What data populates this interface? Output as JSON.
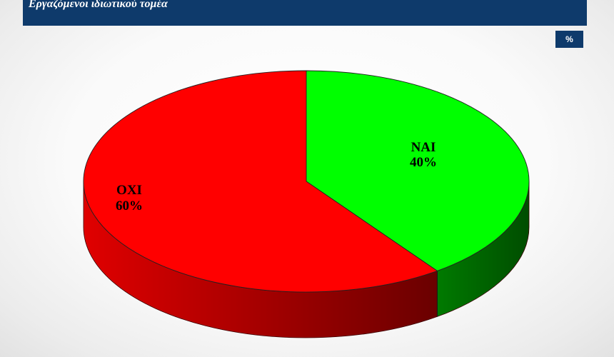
{
  "header": {
    "title": "Εργαζόμενοι ιδιωτικού τομέα"
  },
  "unit_badge": "%",
  "colors": {
    "header_bg": "#0e3a6b",
    "nai_top": "#00ff00",
    "nai_side": "#006b00",
    "oxi_top": "#ff0000",
    "oxi_side": "#b00000"
  },
  "chart_data": {
    "type": "pie",
    "style": "3d",
    "categories": [
      "ΝΑΙ",
      "ΟΧΙ"
    ],
    "values": [
      40,
      60
    ],
    "data_labels": [
      "40%",
      "60%"
    ],
    "title": "Εργαζόμενοι ιδιωτικού τομέα",
    "unit": "%",
    "legend": "none"
  }
}
